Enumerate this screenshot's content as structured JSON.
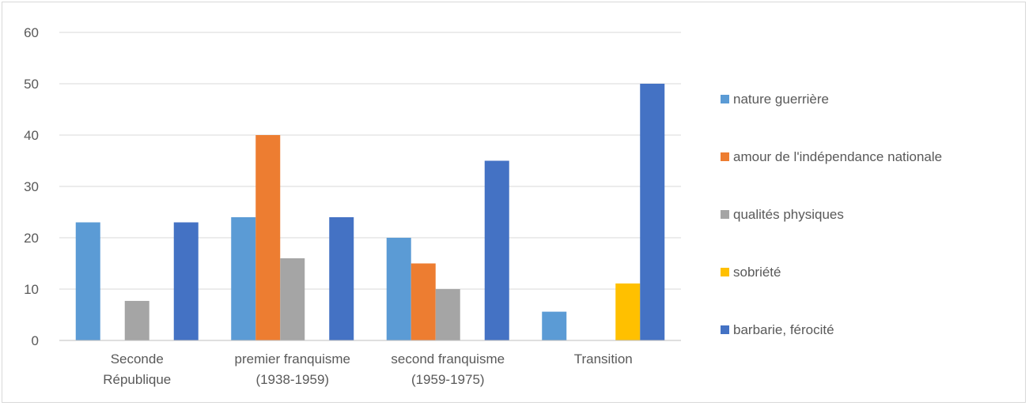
{
  "chart_data": {
    "type": "bar",
    "title": "",
    "xlabel": "",
    "ylabel": "",
    "ylim": [
      0,
      60
    ],
    "yticks": [
      0,
      10,
      20,
      30,
      40,
      50,
      60
    ],
    "grid": true,
    "legend_position": "right",
    "categories": [
      [
        "Seconde",
        "République"
      ],
      [
        "premier franquisme",
        "(1938-1959)"
      ],
      [
        "second franquisme",
        "(1959-1975)"
      ],
      [
        "Transition"
      ]
    ],
    "series": [
      {
        "name": "nature guerrière",
        "color": "#5b9bd5",
        "values": [
          23,
          24,
          20,
          5.6
        ]
      },
      {
        "name": "amour de l'indépendance nationale",
        "color": "#ed7d31",
        "values": [
          0,
          40,
          15,
          0
        ]
      },
      {
        "name": "qualités physiques",
        "color": "#a5a5a5",
        "values": [
          7.7,
          16,
          10,
          0
        ]
      },
      {
        "name": "sobriété",
        "color": "#ffc000",
        "values": [
          0,
          0,
          0,
          11.1
        ]
      },
      {
        "name": "barbarie, férocité",
        "color": "#4472c4",
        "values": [
          23,
          24,
          35,
          50
        ]
      }
    ]
  }
}
